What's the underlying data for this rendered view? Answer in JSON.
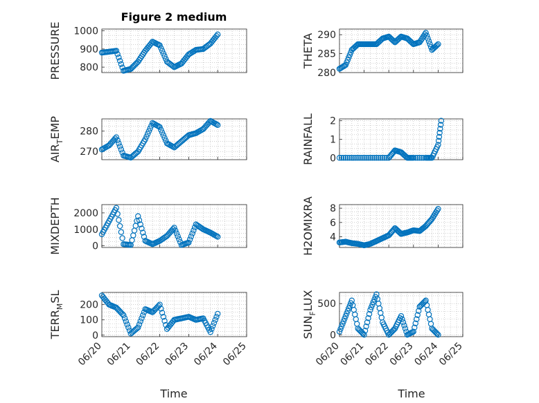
{
  "figure": {
    "title": "Figure 2 medium",
    "xlabel": "Time"
  },
  "colors": {
    "marker": "#0072BD",
    "axis": "#262626",
    "grid": "#b0b0b0"
  },
  "chart_data": [
    {
      "type": "scatter",
      "name": "PRESSURE",
      "ylabel": "PRESSURE",
      "title": "Figure 2 medium",
      "xlim": [
        "06/20",
        "06/25"
      ],
      "ylim": [
        770,
        1010
      ],
      "yticks": [
        800,
        900,
        1000
      ],
      "x": [
        "06/20 00:00",
        "06/20 06:00",
        "06/20 12:00",
        "06/20 18:00",
        "06/21 00:00",
        "06/21 06:00",
        "06/21 12:00",
        "06/21 18:00",
        "06/22 00:00",
        "06/22 06:00",
        "06/22 12:00",
        "06/22 18:00",
        "06/23 00:00",
        "06/23 06:00",
        "06/23 12:00",
        "06/23 18:00",
        "06/24 00:00"
      ],
      "y": [
        880,
        885,
        890,
        780,
        790,
        830,
        890,
        940,
        920,
        830,
        800,
        820,
        870,
        895,
        900,
        930,
        980
      ]
    },
    {
      "type": "scatter",
      "name": "THETA",
      "ylabel": "THETA",
      "ylim": [
        280,
        291.5
      ],
      "yticks": [
        280,
        285,
        290
      ],
      "x": [
        "06/20 00:00",
        "06/20 06:00",
        "06/20 12:00",
        "06/20 18:00",
        "06/21 00:00",
        "06/21 06:00",
        "06/21 12:00",
        "06/21 18:00",
        "06/22 00:00",
        "06/22 06:00",
        "06/22 12:00",
        "06/22 18:00",
        "06/23 00:00",
        "06/23 06:00",
        "06/23 12:00",
        "06/23 18:00",
        "06/24 00:00"
      ],
      "y": [
        281,
        282,
        286,
        287.5,
        287.5,
        287.5,
        287.5,
        289,
        289.5,
        288,
        289.5,
        289,
        287.5,
        288,
        290.5,
        286,
        287.5
      ]
    },
    {
      "type": "scatter",
      "name": "AIR_TEMP",
      "ylabel": "AIR",
      "ylabel_sub": "T",
      "ylabel_rest": "EMP",
      "ylim": [
        266,
        286
      ],
      "yticks": [
        270,
        280
      ],
      "x": [
        "06/20 00:00",
        "06/20 06:00",
        "06/20 12:00",
        "06/20 18:00",
        "06/21 00:00",
        "06/21 06:00",
        "06/21 12:00",
        "06/21 18:00",
        "06/22 00:00",
        "06/22 06:00",
        "06/22 12:00",
        "06/22 18:00",
        "06/23 00:00",
        "06/23 06:00",
        "06/23 12:00",
        "06/23 18:00",
        "06/24 00:00"
      ],
      "y": [
        271,
        273,
        277,
        268,
        267,
        270,
        276,
        284,
        282,
        274,
        272,
        275,
        278,
        279,
        281,
        285,
        283
      ]
    },
    {
      "type": "scatter",
      "name": "RAINFALL",
      "ylabel": "RAINFALL",
      "ylim": [
        -0.1,
        2.1
      ],
      "yticks": [
        0,
        1,
        2
      ],
      "x": [
        "06/20 00:00",
        "06/20 12:00",
        "06/21 00:00",
        "06/21 12:00",
        "06/22 00:00",
        "06/22 06:00",
        "06/22 12:00",
        "06/22 18:00",
        "06/23 00:00",
        "06/23 12:00",
        "06/23 18:00",
        "06/24 00:00",
        "06/24 03:00"
      ],
      "y": [
        0,
        0,
        0,
        0,
        0,
        0.4,
        0.3,
        0,
        0,
        0,
        0,
        0.7,
        2.0
      ]
    },
    {
      "type": "scatter",
      "name": "MIXDEPTH",
      "ylabel": "MIXDEPTH",
      "ylim": [
        -100,
        2500
      ],
      "yticks": [
        0,
        1000,
        2000
      ],
      "x": [
        "06/20 00:00",
        "06/20 06:00",
        "06/20 12:00",
        "06/20 18:00",
        "06/21 00:00",
        "06/21 06:00",
        "06/21 12:00",
        "06/21 18:00",
        "06/22 00:00",
        "06/22 06:00",
        "06/22 12:00",
        "06/22 18:00",
        "06/23 00:00",
        "06/23 06:00",
        "06/23 12:00",
        "06/23 18:00",
        "06/24 00:00"
      ],
      "y": [
        700,
        1500,
        2300,
        100,
        50,
        1800,
        300,
        100,
        300,
        600,
        1100,
        50,
        200,
        1300,
        1000,
        800,
        550
      ]
    },
    {
      "type": "scatter",
      "name": "H2OMIXRA",
      "ylabel": "H2OMIXRA",
      "ylim": [
        2.5,
        8.5
      ],
      "yticks": [
        4,
        6,
        8
      ],
      "x": [
        "06/20 00:00",
        "06/20 06:00",
        "06/20 12:00",
        "06/20 18:00",
        "06/21 00:00",
        "06/21 06:00",
        "06/21 12:00",
        "06/21 18:00",
        "06/22 00:00",
        "06/22 06:00",
        "06/22 12:00",
        "06/22 18:00",
        "06/23 00:00",
        "06/23 06:00",
        "06/23 12:00",
        "06/23 18:00",
        "06/24 00:00"
      ],
      "y": [
        3.2,
        3.3,
        3.1,
        3.0,
        2.8,
        3.0,
        3.4,
        3.8,
        4.2,
        5.2,
        4.4,
        4.6,
        4.9,
        4.8,
        5.5,
        6.5,
        7.9
      ]
    },
    {
      "type": "scatter",
      "name": "TERR_MSL",
      "ylabel": "TERR",
      "ylabel_sub": "M",
      "ylabel_rest": "SL",
      "ylim": [
        -10,
        280
      ],
      "yticks": [
        0,
        100,
        200
      ],
      "x": [
        "06/20 00:00",
        "06/20 06:00",
        "06/20 12:00",
        "06/20 18:00",
        "06/21 00:00",
        "06/21 06:00",
        "06/21 12:00",
        "06/21 18:00",
        "06/22 00:00",
        "06/22 06:00",
        "06/22 12:00",
        "06/22 18:00",
        "06/23 00:00",
        "06/23 06:00",
        "06/23 12:00",
        "06/23 18:00",
        "06/24 00:00"
      ],
      "y": [
        260,
        200,
        180,
        130,
        10,
        50,
        170,
        150,
        200,
        40,
        100,
        110,
        120,
        100,
        110,
        20,
        140
      ]
    },
    {
      "type": "scatter",
      "name": "SUN_FLUX",
      "ylabel": "SUN",
      "ylabel_sub": "F",
      "ylabel_rest": "LUX",
      "ylim": [
        -30,
        680
      ],
      "yticks": [
        0,
        500
      ],
      "x": [
        "06/20 00:00",
        "06/20 06:00",
        "06/20 12:00",
        "06/20 18:00",
        "06/21 00:00",
        "06/21 06:00",
        "06/21 12:00",
        "06/21 18:00",
        "06/22 00:00",
        "06/22 06:00",
        "06/22 12:00",
        "06/22 18:00",
        "06/23 00:00",
        "06/23 06:00",
        "06/23 12:00",
        "06/23 18:00",
        "06/24 00:00"
      ],
      "y": [
        50,
        300,
        550,
        100,
        0,
        400,
        650,
        200,
        0,
        100,
        300,
        0,
        50,
        450,
        550,
        100,
        0
      ]
    }
  ],
  "xticks": [
    "06/20",
    "06/21",
    "06/22",
    "06/23",
    "06/24",
    "06/25"
  ]
}
